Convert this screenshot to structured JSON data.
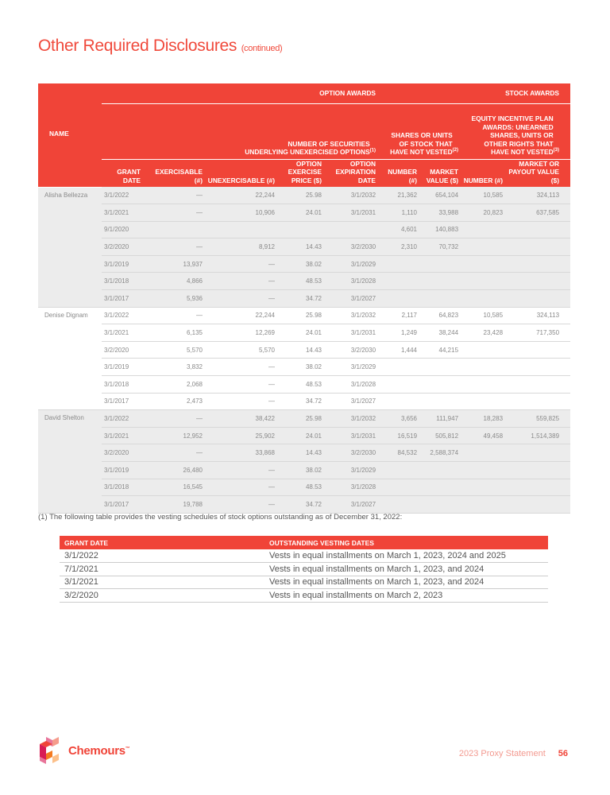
{
  "page": {
    "title": "Other Required Disclosures",
    "title_suffix": "(continued)",
    "footnote": "(1)  The following table provides the vesting schedules of stock options outstanding as of December 31, 2022:",
    "footer_doc": "2023 Proxy Statement",
    "page_number": "56",
    "brand": "Chemours",
    "brand_mark": "™"
  },
  "colors": {
    "accent": "#f04438",
    "row_shade": "#ececec"
  },
  "main_table": {
    "group_headers": {
      "option_awards": "OPTION AWARDS",
      "stock_awards": "STOCK AWARDS"
    },
    "sub_headers": {
      "securities": "NUMBER OF SECURITIES UNDERLYING UNEXERCISED OPTIONS",
      "securities_note": "(1)",
      "shares": "SHARES OR UNITS OF STOCK THAT HAVE NOT VESTED",
      "shares_note": "(2)",
      "equity": "EQUITY INCENTIVE PLAN AWARDS: UNEARNED SHARES, UNITS OR OTHER RIGHTS THAT HAVE NOT VESTED",
      "equity_note": "(3)"
    },
    "columns": [
      "NAME",
      "GRANT DATE",
      "EXERCISABLE (#)",
      "UNEXERCISABLE (#)",
      "OPTION EXERCISE PRICE ($)",
      "OPTION EXPIRATION DATE",
      "NUMBER (#)",
      "MARKET VALUE ($)",
      "NUMBER (#)",
      "MARKET OR PAYOUT VALUE ($)"
    ],
    "groups": [
      {
        "name": "Alisha Bellezza",
        "rows": [
          [
            "3/1/2022",
            "—",
            "22,244",
            "25.98",
            "3/1/2032",
            "21,362",
            "654,104",
            "10,585",
            "324,113"
          ],
          [
            "3/1/2021",
            "—",
            "10,906",
            "24.01",
            "3/1/2031",
            "1,110",
            "33,988",
            "20,823",
            "637,585"
          ],
          [
            "9/1/2020",
            "",
            "",
            "",
            "",
            "4,601",
            "140,883",
            "",
            ""
          ],
          [
            "3/2/2020",
            "—",
            "8,912",
            "14.43",
            "3/2/2030",
            "2,310",
            "70,732",
            "",
            ""
          ],
          [
            "3/1/2019",
            "13,937",
            "—",
            "38.02",
            "3/1/2029",
            "",
            "",
            "",
            ""
          ],
          [
            "3/1/2018",
            "4,866",
            "—",
            "48.53",
            "3/1/2028",
            "",
            "",
            "",
            ""
          ],
          [
            "3/1/2017",
            "5,936",
            "—",
            "34.72",
            "3/1/2027",
            "",
            "",
            "",
            ""
          ]
        ]
      },
      {
        "name": "Denise Dignam",
        "rows": [
          [
            "3/1/2022",
            "—",
            "22,244",
            "25.98",
            "3/1/2032",
            "2,117",
            "64,823",
            "10,585",
            "324,113"
          ],
          [
            "3/1/2021",
            "6,135",
            "12,269",
            "24.01",
            "3/1/2031",
            "1,249",
            "38,244",
            "23,428",
            "717,350"
          ],
          [
            "3/2/2020",
            "5,570",
            "5,570",
            "14.43",
            "3/2/2030",
            "1,444",
            "44,215",
            "",
            ""
          ],
          [
            "3/1/2019",
            "3,832",
            "—",
            "38.02",
            "3/1/2029",
            "",
            "",
            "",
            ""
          ],
          [
            "3/1/2018",
            "2,068",
            "—",
            "48.53",
            "3/1/2028",
            "",
            "",
            "",
            ""
          ],
          [
            "3/1/2017",
            "2,473",
            "—",
            "34.72",
            "3/1/2027",
            "",
            "",
            "",
            ""
          ]
        ]
      },
      {
        "name": "David Shelton",
        "rows": [
          [
            "3/1/2022",
            "—",
            "38,422",
            "25.98",
            "3/1/2032",
            "3,656",
            "111,947",
            "18,283",
            "559,825"
          ],
          [
            "3/1/2021",
            "12,952",
            "25,902",
            "24.01",
            "3/1/2031",
            "16,519",
            "505,812",
            "49,458",
            "1,514,389"
          ],
          [
            "3/2/2020",
            "—",
            "33,868",
            "14.43",
            "3/2/2030",
            "84,532",
            "2,588,374",
            "",
            ""
          ],
          [
            "3/1/2019",
            "26,480",
            "—",
            "38.02",
            "3/1/2029",
            "",
            "",
            "",
            ""
          ],
          [
            "3/1/2018",
            "16,545",
            "—",
            "48.53",
            "3/1/2028",
            "",
            "",
            "",
            ""
          ],
          [
            "3/1/2017",
            "19,788",
            "—",
            "34.72",
            "3/1/2027",
            "",
            "",
            "",
            ""
          ]
        ]
      }
    ]
  },
  "vesting_table": {
    "headers": [
      "GRANT DATE",
      "OUTSTANDING VESTING DATES"
    ],
    "rows": [
      [
        "3/1/2022",
        "Vests in equal installments on March 1, 2023, 2024 and 2025"
      ],
      [
        "7/1/2021",
        "Vests in equal installments on March 1, 2023, and 2024"
      ],
      [
        "3/1/2021",
        "Vests in equal installments on March 1, 2023, and 2024"
      ],
      [
        "3/2/2020",
        "Vests in equal installments on March 2, 2023"
      ]
    ]
  }
}
